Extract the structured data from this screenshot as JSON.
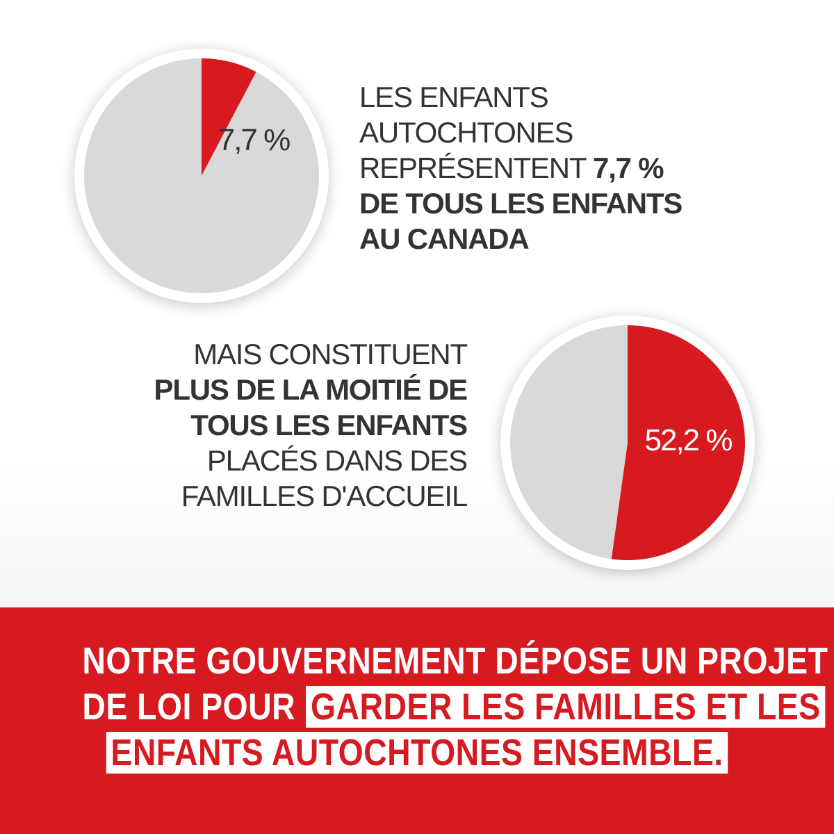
{
  "chart_data": [
    {
      "type": "pie",
      "slices": [
        {
          "label": "7,7 %",
          "value": 7.7
        },
        {
          "label": "",
          "value": 92.3
        }
      ],
      "colors": [
        "#d71920",
        "#d9d9d9"
      ]
    },
    {
      "type": "pie",
      "slices": [
        {
          "label": "52,2 %",
          "value": 52.2
        },
        {
          "label": "",
          "value": 47.8
        }
      ],
      "colors": [
        "#d71920",
        "#d9d9d9"
      ]
    }
  ],
  "statement1": {
    "line1": "LES ENFANTS",
    "line2": "AUTOCHTONES",
    "line3_normal": "REPRÉSENTENT ",
    "line3_bold": "7,7 %",
    "line4": "DE TOUS LES ENFANTS",
    "line5": "AU CANADA"
  },
  "statement2": {
    "line1": "MAIS CONSTITUENT",
    "line2": "PLUS DE LA MOITIÉ DE",
    "line3": "TOUS LES ENFANTS",
    "line4": "PLACÉS DANS DES",
    "line5": "FAMILLES D'ACCUEIL"
  },
  "banner": {
    "line1": "NOTRE GOUVERNEMENT DÉPOSE UN PROJET",
    "line2_plain": "DE LOI POUR",
    "line2_highlight": "GARDER LES FAMILLES ET LES",
    "line3_highlight": "ENFANTS AUTOCHTONES ENSEMBLE."
  },
  "colors": {
    "accent": "#d71920",
    "pie_grey": "#d9d9d9",
    "text_dark": "#333333"
  }
}
